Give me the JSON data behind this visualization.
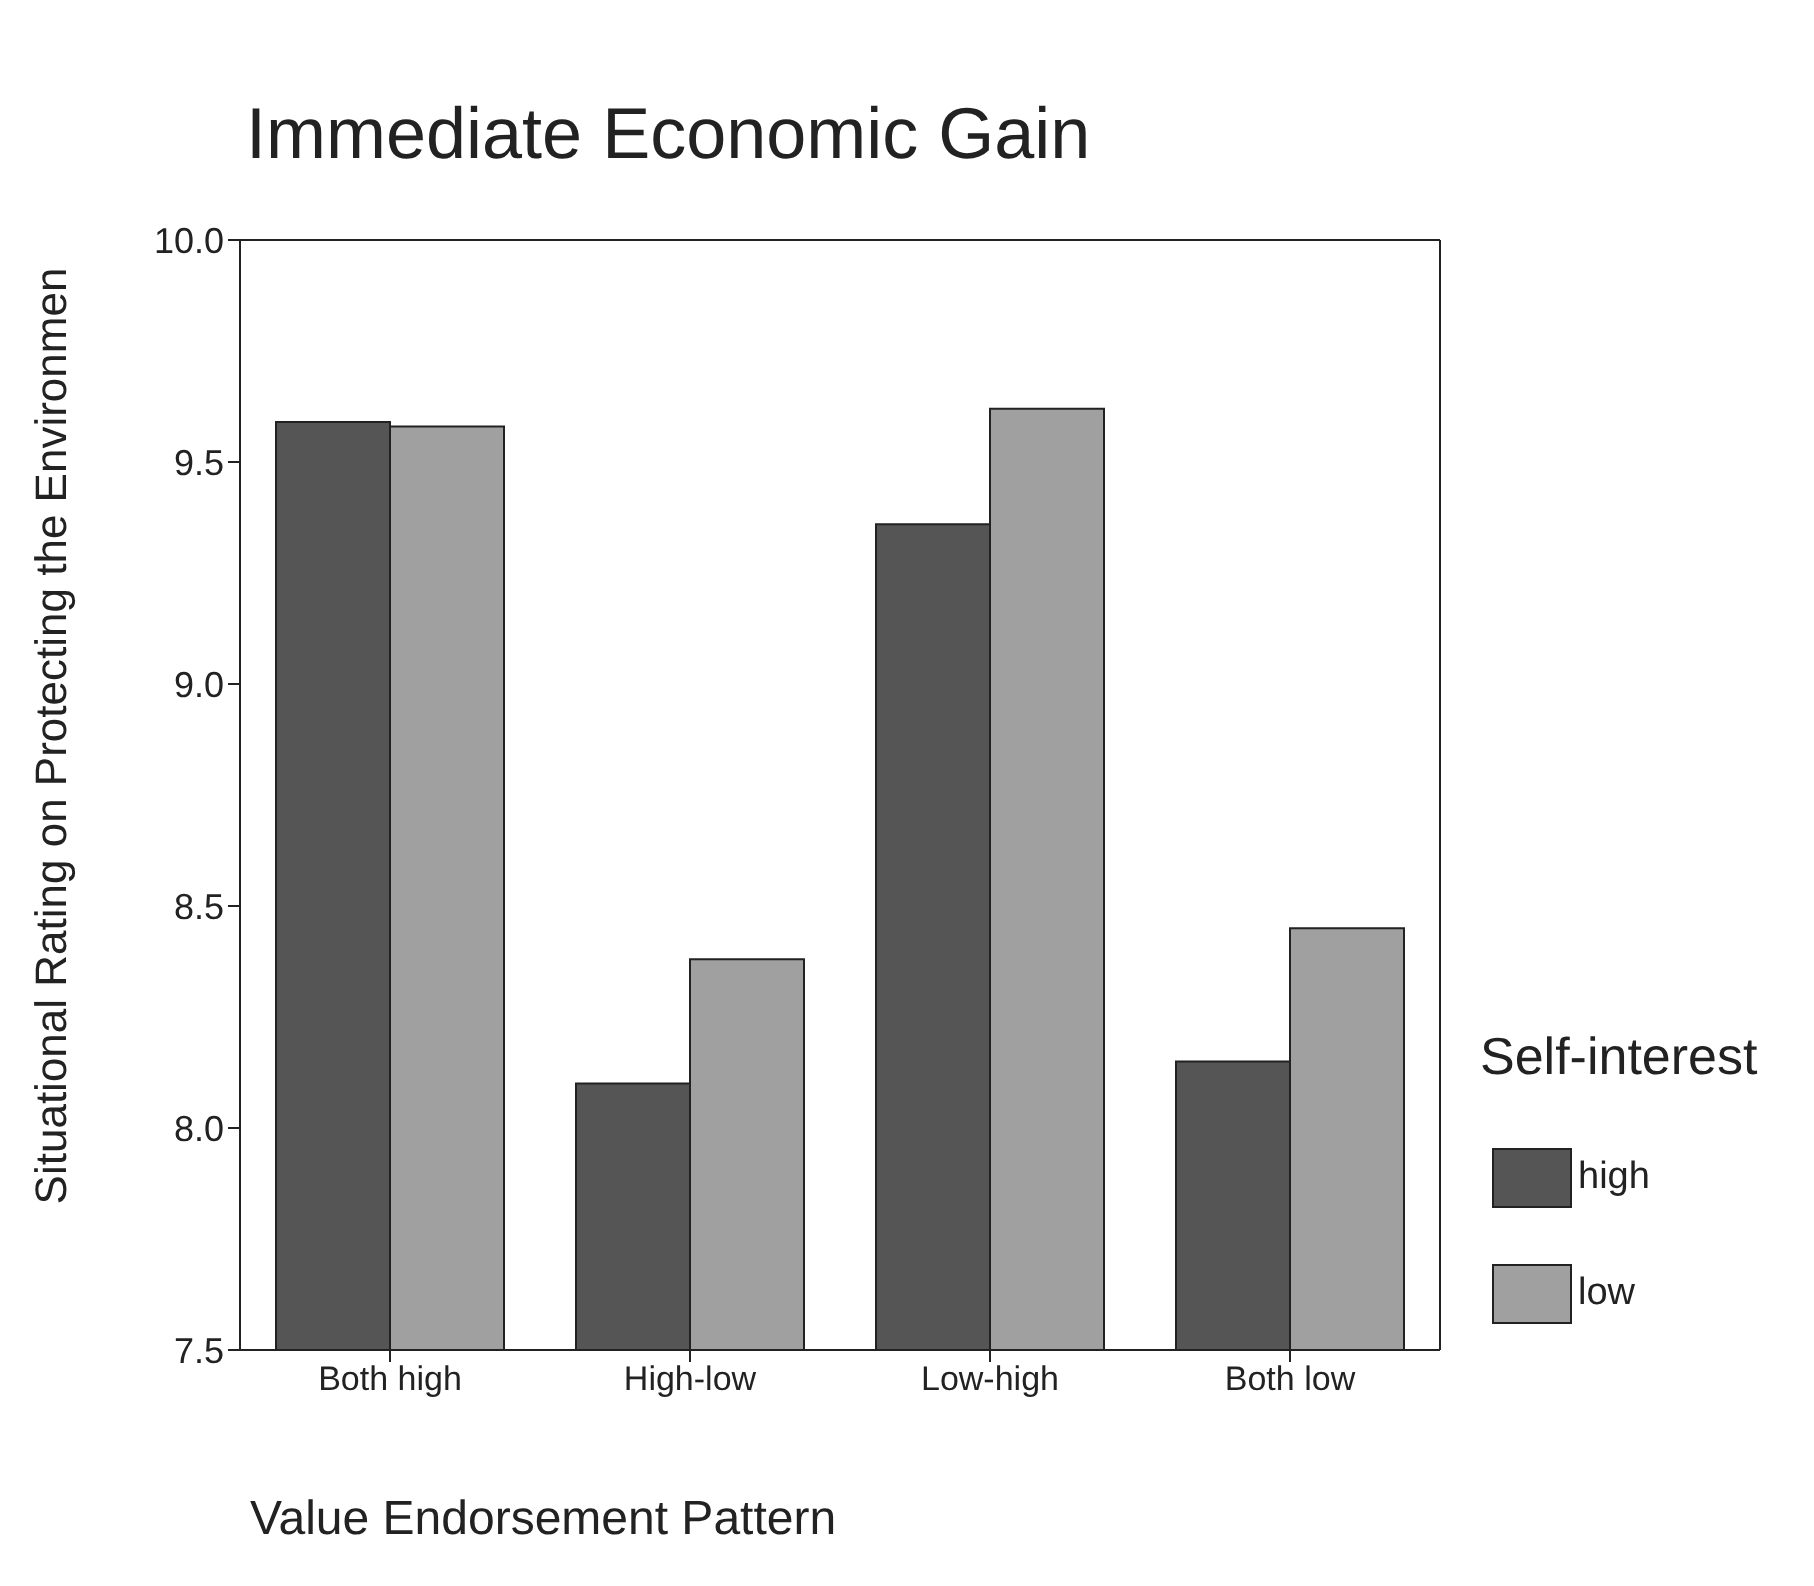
{
  "chart_data": {
    "type": "bar",
    "title": "Immediate Economic Gain",
    "xlabel": "Value Endorsement Pattern",
    "ylabel": "Situational Rating on Protecting the Environmen",
    "legend_title": "Self-interest",
    "categories": [
      "Both high",
      "High-low",
      "Low-high",
      "Both low"
    ],
    "series": [
      {
        "name": "high",
        "color": "#555555",
        "values": [
          9.59,
          8.1,
          9.36,
          8.15
        ]
      },
      {
        "name": "low",
        "color": "#a0a0a0",
        "values": [
          9.58,
          8.38,
          9.62,
          8.45
        ]
      }
    ],
    "ylim": [
      7.5,
      10.0
    ],
    "yticks": [
      {
        "value": 7.5,
        "label": "7.5"
      },
      {
        "value": 8,
        "label": "8.0"
      },
      {
        "value": 8.5,
        "label": "8.5"
      },
      {
        "value": 9,
        "label": "9.0"
      },
      {
        "value": 9.5,
        "label": "9.5"
      },
      {
        "value": 10,
        "label": "10.0"
      }
    ],
    "grid": false,
    "legend": "right"
  }
}
